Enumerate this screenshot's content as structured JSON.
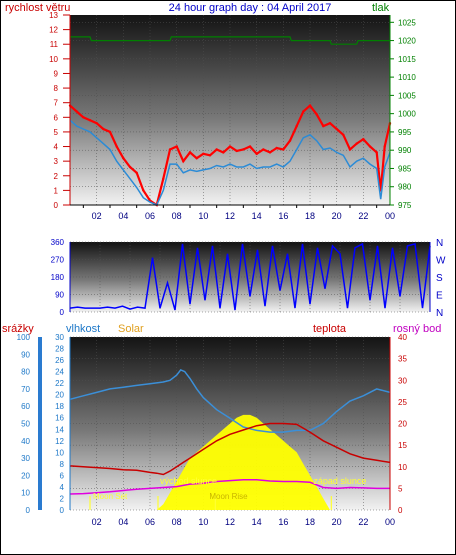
{
  "title": "24 hour graph day : 04 April 2017",
  "colors": {
    "wind": "#ff0000",
    "wind_avg": "#2b8bd6",
    "pressure": "#008000",
    "direction": "#0000ff",
    "rain": "#1e78c8",
    "humidity": "#3b8fd8",
    "solar": "#ffff00",
    "temp": "#c80000",
    "dew": "#e000e0",
    "sun_marker": "#ffff33",
    "moon_marker": "#ffff33"
  },
  "chart_data": [
    {
      "type": "line",
      "left_label": "rychlost větru",
      "right_label": "tlak",
      "y_left_ticks": [
        "0",
        "1",
        "2",
        "3",
        "4",
        "5",
        "6",
        "7",
        "8",
        "9",
        "10",
        "11",
        "12",
        "13"
      ],
      "y_right_ticks": [
        "975",
        "980",
        "985",
        "990",
        "995",
        "1000",
        "1005",
        "1010",
        "1015",
        "1020",
        "1025"
      ],
      "ylim_left": [
        0,
        13
      ],
      "ylim_right": [
        975,
        1027
      ],
      "x_ticks": [
        "02",
        "04",
        "06",
        "08",
        "10",
        "12",
        "14",
        "16",
        "18",
        "20",
        "22",
        "00"
      ],
      "xlim": [
        0,
        24
      ],
      "series": [
        {
          "key": "wind_gust",
          "x": [
            0,
            0.5,
            1,
            1.5,
            2,
            2.5,
            3,
            3.5,
            4,
            4.5,
            5,
            5.5,
            6,
            6.5,
            7,
            7.5,
            8,
            8.5,
            9,
            9.5,
            10,
            10.5,
            11,
            11.5,
            12,
            12.5,
            13,
            13.5,
            14,
            14.5,
            15,
            15.5,
            16,
            16.5,
            17,
            17.5,
            18,
            18.5,
            19,
            19.5,
            20,
            20.5,
            21,
            21.5,
            22,
            22.5,
            23,
            23.3,
            23.6,
            24
          ],
          "y": [
            6.8,
            6.4,
            6.0,
            5.8,
            5.6,
            5.2,
            5.0,
            4.0,
            3.2,
            2.6,
            2.2,
            1.0,
            0.3,
            0.0,
            1.8,
            3.8,
            4.0,
            3.0,
            3.6,
            3.2,
            3.5,
            3.4,
            3.8,
            3.6,
            4.0,
            3.7,
            3.8,
            4.0,
            3.5,
            3.8,
            3.6,
            3.9,
            3.8,
            4.4,
            5.4,
            6.4,
            6.8,
            6.2,
            5.4,
            5.6,
            5.2,
            4.8,
            3.8,
            4.2,
            4.5,
            4.0,
            3.6,
            1.0,
            4.0,
            5.6
          ]
        },
        {
          "key": "wind_avg",
          "x": [
            0,
            0.5,
            1,
            1.5,
            2,
            2.5,
            3,
            3.5,
            4,
            4.5,
            5,
            5.5,
            6,
            6.5,
            7,
            7.5,
            8,
            8.5,
            9,
            9.5,
            10,
            10.5,
            11,
            11.5,
            12,
            12.5,
            13,
            13.5,
            14,
            14.5,
            15,
            15.5,
            16,
            16.5,
            17,
            17.5,
            18,
            18.5,
            19,
            19.5,
            20,
            20.5,
            21,
            21.5,
            22,
            22.5,
            23,
            23.3,
            23.6,
            24
          ],
          "y": [
            5.8,
            5.4,
            5.2,
            5.0,
            4.6,
            4.2,
            3.8,
            3.0,
            2.4,
            1.8,
            1.2,
            0.5,
            0.2,
            0.0,
            1.0,
            2.8,
            2.8,
            2.2,
            2.4,
            2.3,
            2.4,
            2.5,
            2.7,
            2.6,
            2.8,
            2.6,
            2.6,
            2.8,
            2.5,
            2.6,
            2.6,
            2.8,
            2.6,
            3.0,
            3.8,
            4.6,
            4.8,
            4.4,
            3.8,
            3.9,
            3.6,
            3.4,
            2.6,
            3.0,
            3.2,
            2.8,
            2.5,
            0.4,
            2.6,
            3.6
          ]
        },
        {
          "key": "pressure",
          "x": [
            0,
            1.5,
            1.6,
            7.5,
            7.6,
            16.5,
            16.6,
            19.5,
            19.6,
            21.5,
            21.6,
            24
          ],
          "y": [
            1021,
            1021,
            1020,
            1020,
            1021,
            1021,
            1020,
            1020,
            1019,
            1019,
            1020,
            1020
          ]
        }
      ]
    },
    {
      "type": "line",
      "y_left_ticks": [
        "0",
        "90",
        "180",
        "270",
        "360"
      ],
      "y_right_ticks": [
        "N",
        "E",
        "S",
        "W",
        "N"
      ],
      "ylim": [
        0,
        360
      ],
      "xlim": [
        0,
        24
      ],
      "series": [
        {
          "key": "wind_direction",
          "x": [
            0,
            0.5,
            1,
            1.5,
            2,
            2.5,
            3,
            3.5,
            4,
            4.5,
            5,
            5.5,
            6,
            6.5,
            7,
            7.5,
            8,
            8.5,
            9,
            9.5,
            10,
            10.5,
            11,
            11.5,
            12,
            12.5,
            13,
            13.5,
            14,
            14.5,
            15,
            15.5,
            16,
            16.5,
            17,
            17.5,
            18,
            18.5,
            19,
            19.5,
            20,
            20.5,
            21,
            21.5,
            22,
            22.5,
            23,
            23.5,
            24
          ],
          "y": [
            20,
            25,
            20,
            20,
            20,
            25,
            20,
            30,
            15,
            25,
            20,
            280,
            20,
            150,
            10,
            350,
            40,
            330,
            60,
            340,
            20,
            300,
            10,
            350,
            80,
            320,
            30,
            340,
            110,
            300,
            20,
            350,
            40,
            330,
            120,
            340,
            300,
            20,
            330,
            350,
            60,
            340,
            20,
            330,
            80,
            340,
            350,
            20,
            340
          ]
        }
      ]
    },
    {
      "type": "line",
      "labels": {
        "rain": "srážky",
        "humidity": "vlhkost",
        "solar": "Solar",
        "temp": "teplota",
        "dew": "rosný bod"
      },
      "y_rain_ticks": [
        "0",
        "10",
        "20",
        "30",
        "40",
        "50",
        "60",
        "70",
        "80",
        "90",
        "100"
      ],
      "y_hum_ticks": [
        "0",
        "2",
        "4",
        "6",
        "8",
        "10",
        "12",
        "14",
        "16",
        "18",
        "20",
        "22",
        "24",
        "26",
        "28",
        "30"
      ],
      "y_right_ticks": [
        "0",
        "5",
        "10",
        "15",
        "20",
        "25",
        "30",
        "35",
        "40"
      ],
      "ylim_rain": [
        0,
        100
      ],
      "ylim_hum": [
        0,
        30
      ],
      "ylim_right": [
        0,
        40
      ],
      "x_ticks": [
        "02",
        "04",
        "06",
        "08",
        "10",
        "12",
        "14",
        "16",
        "18",
        "20",
        "22",
        "00"
      ],
      "xlim": [
        0,
        24
      ],
      "annotations": {
        "sunrise": "východ slunce",
        "sunset": "západ slunce",
        "moonset": "Moon Set",
        "moonrise": "Moon Rise"
      },
      "events": {
        "sunrise": 6.6,
        "sunset": 19.6,
        "moonset": 1.5,
        "moonrise": 10.9
      },
      "series": [
        {
          "key": "humidity",
          "x": [
            0,
            1,
            2,
            3,
            4,
            5,
            6,
            7,
            7.5,
            8,
            8.3,
            8.6,
            9,
            9.5,
            10,
            11,
            12,
            13,
            14,
            15,
            16,
            17,
            18,
            19,
            20,
            21,
            22,
            23,
            24
          ],
          "y": [
            64,
            66,
            68,
            70,
            71,
            72,
            73,
            74,
            75,
            78,
            81,
            80,
            76,
            70,
            65,
            58,
            53,
            48,
            46,
            45,
            45,
            46,
            46,
            50,
            57,
            63,
            66,
            70,
            68
          ]
        },
        {
          "key": "solar",
          "x": [
            6.5,
            7,
            7.5,
            8,
            8.5,
            9,
            9.5,
            10,
            10.5,
            11,
            11.5,
            12,
            12.5,
            13,
            13.5,
            14,
            14.5,
            15,
            15.5,
            16,
            16.5,
            17,
            17.5,
            18,
            18.5,
            19,
            19.5
          ],
          "y": [
            0,
            1,
            3,
            5,
            7,
            9,
            10,
            11,
            12,
            13,
            14,
            15,
            16,
            16.5,
            16.5,
            16,
            15,
            14,
            13,
            12,
            11,
            10,
            8,
            6,
            4,
            2,
            0
          ]
        },
        {
          "key": "temperature",
          "x": [
            0,
            1,
            2,
            3,
            4,
            5,
            6,
            6.5,
            7,
            7.5,
            8,
            8.5,
            9,
            10,
            11,
            12,
            13,
            14,
            15,
            16,
            17,
            18,
            19,
            20,
            21,
            22,
            23,
            24
          ],
          "y": [
            10.2,
            10,
            9.8,
            9.6,
            9.3,
            9.2,
            8.7,
            8.5,
            8.2,
            9,
            10,
            11,
            12,
            14,
            16,
            17.5,
            18.5,
            19.5,
            20,
            20,
            19.8,
            18,
            16,
            14.5,
            13,
            12,
            11.5,
            11
          ]
        },
        {
          "key": "dewpoint",
          "x": [
            0,
            1,
            2,
            3,
            4,
            5,
            6,
            7,
            8,
            9,
            10,
            11,
            12,
            13,
            14,
            15,
            16,
            17,
            18,
            19,
            20,
            21,
            22,
            23,
            24
          ],
          "y": [
            3.7,
            3.8,
            4,
            4.2,
            4.5,
            4.8,
            5,
            5.2,
            5.4,
            6,
            6.2,
            6.6,
            6.8,
            7,
            7,
            6.7,
            6.6,
            6.6,
            6.4,
            5.2,
            5,
            5.2,
            5.1,
            5,
            5
          ]
        }
      ]
    }
  ]
}
